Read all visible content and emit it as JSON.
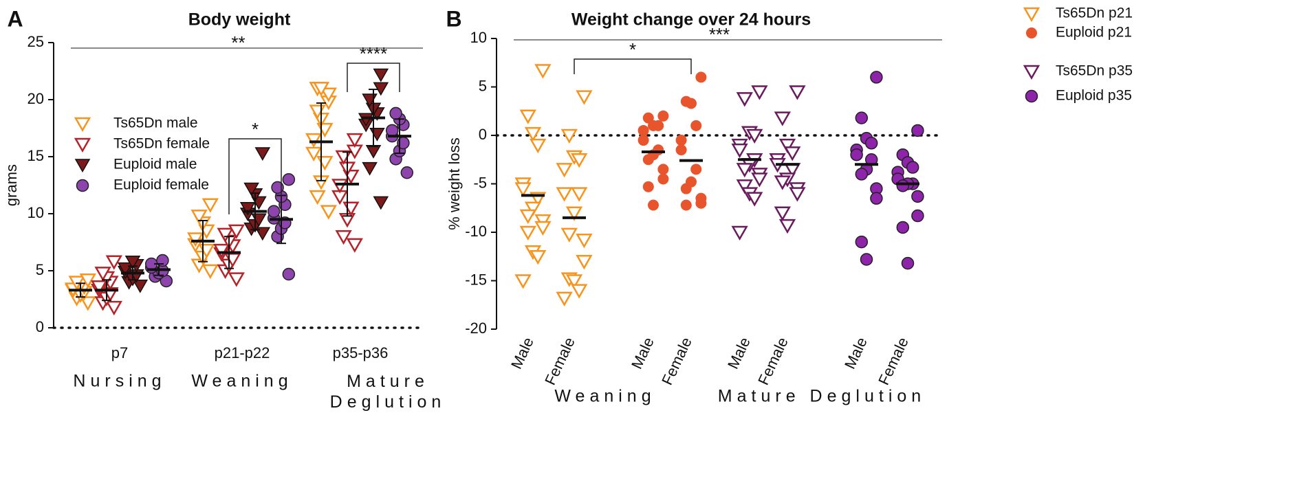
{
  "chart_data": [
    {
      "type": "dotplot",
      "panel": "A",
      "title": "Body weight",
      "ylabel": "grams",
      "categories": [
        "p7",
        "p21-p22",
        "p35-p36"
      ],
      "groups": [
        {
          "label": "Nursing",
          "categories": [
            0
          ]
        },
        {
          "label": "Weaning",
          "categories": [
            1
          ]
        },
        {
          "label": "Mature Deglution",
          "categories": [
            2
          ]
        }
      ],
      "ylim": [
        0,
        25
      ],
      "yticks": [
        0,
        5,
        10,
        15,
        20,
        25
      ],
      "legend": "upper left",
      "series": [
        {
          "name": "Ts65Dn male",
          "marker": "open-triangle",
          "color": "#f7941d",
          "values": [
            [
              2.2,
              2.6,
              2.9,
              3.1,
              3.3,
              3.4,
              3.6,
              3.8,
              4.0,
              4.2
            ],
            [
              5.0,
              5.5,
              6.2,
              6.8,
              7.3,
              7.8,
              8.5,
              9.2,
              9.8,
              10.8
            ],
            [
              10.2,
              11.5,
              12.8,
              14.5,
              15.3,
              16.5,
              17.4,
              18.3,
              19.0,
              19.8,
              20.5,
              21.0,
              21.0
            ]
          ],
          "means": [
            3.3,
            7.6,
            16.3
          ],
          "sd": [
            0.6,
            1.8,
            3.4
          ]
        },
        {
          "name": "Ts65Dn female",
          "marker": "open-triangle",
          "color": "#b5232a",
          "values": [
            [
              1.8,
              2.2,
              2.6,
              3.0,
              3.3,
              3.6,
              4.0,
              4.4,
              4.8,
              5.8
            ],
            [
              4.3,
              5.0,
              5.5,
              6.0,
              6.5,
              6.8,
              7.2,
              7.6,
              8.2,
              8.5
            ],
            [
              7.3,
              8.0,
              9.5,
              10.5,
              11.5,
              12.5,
              13.3,
              14.0,
              15.0,
              15.5,
              16.5
            ]
          ],
          "means": [
            3.3,
            6.6,
            12.6
          ],
          "sd": [
            0.9,
            1.4,
            2.8
          ]
        },
        {
          "name": "Euploid male",
          "marker": "filled-triangle",
          "color": "#7b1a1a",
          "values": [
            [
              3.7,
              4.0,
              4.3,
              4.6,
              4.9,
              5.2,
              5.5,
              5.8
            ],
            [
              8.3,
              8.7,
              9.0,
              9.5,
              10.0,
              10.5,
              11.0,
              11.7,
              12.2,
              15.3
            ],
            [
              11.0,
              14.0,
              15.5,
              17.0,
              17.8,
              18.3,
              18.8,
              19.2,
              20.0,
              21.0,
              22.2
            ]
          ],
          "means": [
            4.8,
            10.2,
            18.4
          ],
          "sd": [
            0.6,
            1.6,
            2.5
          ]
        },
        {
          "name": "Euploid female",
          "marker": "circle",
          "color": "#8e44ad",
          "values": [
            [
              4.1,
              4.5,
              4.8,
              5.0,
              5.3,
              5.6,
              5.9
            ],
            [
              4.7,
              8.0,
              8.7,
              9.2,
              9.6,
              10.2,
              10.8,
              11.5,
              12.3,
              13.0
            ],
            [
              13.6,
              14.8,
              15.5,
              16.2,
              16.8,
              17.3,
              17.8,
              18.3,
              18.8
            ]
          ],
          "means": [
            5.1,
            9.5,
            16.8
          ],
          "sd": [
            0.5,
            2.1,
            1.5
          ]
        }
      ],
      "annotations": [
        {
          "text": "**"
        },
        {
          "text": "*",
          "category": 1,
          "from": 1,
          "to": 3
        },
        {
          "text": "****",
          "category": 2,
          "from": 1,
          "to": 3
        }
      ]
    },
    {
      "type": "dotplot",
      "panel": "B",
      "title": "Weight change over 24 hours",
      "ylabel": "% weight loss",
      "categories": [
        "Male",
        "Female",
        "Male",
        "Female",
        "Male",
        "Female",
        "Male",
        "Female"
      ],
      "groups": [
        {
          "label": "Weaning",
          "categories": [
            0,
            1,
            2,
            3
          ]
        },
        {
          "label": "Mature Deglution",
          "categories": [
            4,
            5,
            6,
            7
          ]
        }
      ],
      "ylim": [
        -20,
        10
      ],
      "yticks": [
        -20,
        -15,
        -10,
        -5,
        0,
        5,
        10
      ],
      "legend": "outside right",
      "series": [
        {
          "name": "Ts65Dn p21",
          "marker": "open-triangle",
          "color": "#f7941d",
          "values": [
            [
              6.7,
              2.0,
              0.2,
              -1.0,
              -5.0,
              -5.5,
              -6.5,
              -7.5,
              -8.3,
              -8.8,
              -9.5,
              -10.0,
              -12.0,
              -12.5,
              -15.0
            ],
            [
              4.0,
              0,
              -2.2,
              -2.5,
              -3.5,
              -6.0,
              -6.0,
              -8.0,
              -10.2,
              -10.8,
              -13.0,
              -14.8,
              -15.0,
              -16.0,
              -16.8
            ],
            null,
            null,
            null,
            null,
            null,
            null
          ],
          "means": [
            -6.2,
            -8.5,
            null,
            null,
            null,
            null,
            null,
            null
          ]
        },
        {
          "name": "Euploid p21",
          "marker": "dot",
          "color": "#e8542b",
          "values": [
            null,
            null,
            [
              2.0,
              1.8,
              1.0,
              1.0,
              0.5,
              -0.5,
              -1.5,
              -2.0,
              -2.5,
              -3.5,
              -4.5,
              -5.3,
              -7.2
            ],
            [
              6.0,
              3.5,
              3.3,
              1.0,
              -0.5,
              -1.5,
              -3.5,
              -4.8,
              -5.5,
              -6.5,
              -7.0,
              -7.2
            ],
            null,
            null,
            null,
            null
          ],
          "means": [
            null,
            null,
            -1.7,
            -2.6,
            null,
            null,
            null,
            null
          ]
        },
        {
          "name": "Ts65Dn p35",
          "marker": "open-triangle",
          "color": "#6a1b5e",
          "values": [
            null,
            null,
            null,
            null,
            [
              4.5,
              3.8,
              0.3,
              0,
              -1.0,
              -1.5,
              -2.5,
              -3.0,
              -3.5,
              -4.0,
              -4.5,
              -5.2,
              -6.0,
              -6.5,
              -10.0
            ],
            [
              4.5,
              1.8,
              -1.0,
              -1.8,
              -2.5,
              -3.0,
              -3.5,
              -4.5,
              -4.8,
              -5.5,
              -6.0,
              -8.0,
              -9.3
            ],
            null,
            null
          ],
          "means": [
            null,
            null,
            null,
            null,
            -2.5,
            -3.0,
            null,
            null
          ]
        },
        {
          "name": "Euploid p35",
          "marker": "circle",
          "color": "#8e24aa",
          "values": [
            null,
            null,
            null,
            null,
            null,
            null,
            [
              6.0,
              1.8,
              -0.3,
              -0.8,
              -1.5,
              -2.0,
              -2.5,
              -3.5,
              -4.0,
              -5.5,
              -6.5,
              -11.0,
              -12.8
            ],
            [
              0.5,
              -2.0,
              -2.8,
              -3.3,
              -3.8,
              -4.5,
              -5.0,
              -5.0,
              -5.2,
              -6.3,
              -8.3,
              -9.5,
              -13.2
            ]
          ],
          "means": [
            null,
            null,
            null,
            null,
            null,
            null,
            -3.0,
            -5.0
          ]
        }
      ],
      "annotations": [
        {
          "text": "***"
        },
        {
          "text": "*",
          "from": 1,
          "to": 3
        }
      ]
    }
  ]
}
